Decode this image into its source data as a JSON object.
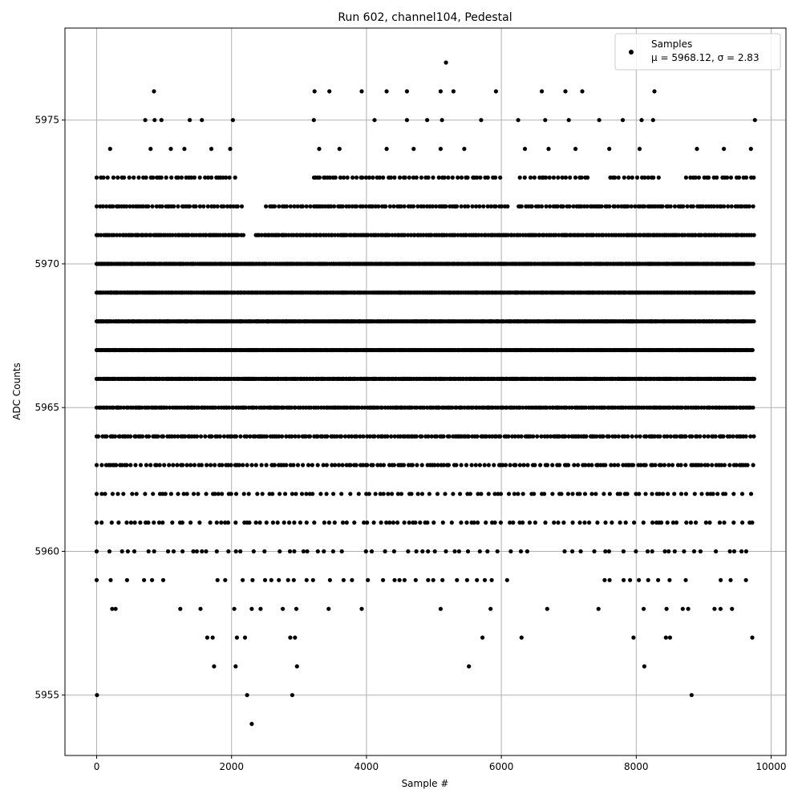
{
  "chart_data": {
    "type": "scatter",
    "title": "Run 602, channel104, Pedestal",
    "xlabel": "Sample #",
    "ylabel": "ADC Counts",
    "xlim": [
      -470,
      10220
    ],
    "ylim": [
      5952.9,
      5978.2
    ],
    "xticks": [
      0,
      2000,
      4000,
      6000,
      8000,
      10000
    ],
    "xtick_labels": [
      "0",
      "2000",
      "4000",
      "6000",
      "8000",
      "10000"
    ],
    "yticks": [
      5955,
      5960,
      5965,
      5970,
      5975
    ],
    "ytick_labels": [
      "5955",
      "5960",
      "5965",
      "5970",
      "5975"
    ],
    "grid": true,
    "legend": {
      "placement": "top-right",
      "entries": [
        {
          "label_line1": "Samples",
          "label_line2": "μ = 5968.12, σ = 2.83",
          "marker": "circle",
          "color": "#000000"
        }
      ]
    },
    "series": [
      {
        "name": "Samples",
        "color": "#000000",
        "marker": "circle",
        "sample_count": 9750,
        "mean": 5968.12,
        "sigma": 2.83,
        "points": [
          [
            850,
            5976
          ],
          [
            3230,
            5976
          ],
          [
            3450,
            5976
          ],
          [
            3930,
            5976
          ],
          [
            4300,
            5976
          ],
          [
            4600,
            5976
          ],
          [
            5100,
            5976
          ],
          [
            5290,
            5976
          ],
          [
            5920,
            5976
          ],
          [
            6600,
            5976
          ],
          [
            6950,
            5976
          ],
          [
            7200,
            5976
          ],
          [
            8270,
            5976
          ],
          [
            5180,
            5977
          ],
          [
            720,
            5975
          ],
          [
            860,
            5975
          ],
          [
            960,
            5975
          ],
          [
            1380,
            5975
          ],
          [
            1560,
            5975
          ],
          [
            2020,
            5975
          ],
          [
            3220,
            5975
          ],
          [
            4120,
            5975
          ],
          [
            4600,
            5975
          ],
          [
            4900,
            5975
          ],
          [
            5120,
            5975
          ],
          [
            5700,
            5975
          ],
          [
            6250,
            5975
          ],
          [
            6650,
            5975
          ],
          [
            7000,
            5975
          ],
          [
            7450,
            5975
          ],
          [
            7800,
            5975
          ],
          [
            8080,
            5975
          ],
          [
            8250,
            5975
          ],
          [
            9760,
            5975
          ],
          [
            200,
            5974
          ],
          [
            800,
            5974
          ],
          [
            1100,
            5974
          ],
          [
            1300,
            5974
          ],
          [
            1700,
            5974
          ],
          [
            1980,
            5974
          ],
          [
            3300,
            5974
          ],
          [
            3600,
            5974
          ],
          [
            4300,
            5974
          ],
          [
            4700,
            5974
          ],
          [
            5100,
            5974
          ],
          [
            5450,
            5974
          ],
          [
            6350,
            5974
          ],
          [
            6700,
            5974
          ],
          [
            7100,
            5974
          ],
          [
            7600,
            5974
          ],
          [
            8050,
            5974
          ],
          [
            8900,
            5974
          ],
          [
            9300,
            5974
          ],
          [
            9700,
            5974
          ],
          [
            4,
            5955
          ],
          [
            2230,
            5955
          ],
          [
            2900,
            5955
          ],
          [
            8820,
            5955
          ],
          [
            2300,
            5954
          ],
          [
            1740,
            5956
          ],
          [
            2060,
            5956
          ],
          [
            2970,
            5956
          ],
          [
            5520,
            5956
          ],
          [
            8120,
            5956
          ],
          [
            1640,
            5957
          ],
          [
            1720,
            5957
          ],
          [
            2080,
            5957
          ],
          [
            2200,
            5957
          ],
          [
            2870,
            5957
          ],
          [
            2940,
            5957
          ],
          [
            5720,
            5957
          ],
          [
            6300,
            5957
          ],
          [
            7960,
            5957
          ],
          [
            8440,
            5957
          ],
          [
            8500,
            5957
          ],
          [
            9720,
            5957
          ],
          [
            230,
            5958
          ],
          [
            280,
            5958
          ],
          [
            1240,
            5958
          ],
          [
            1540,
            5958
          ],
          [
            2040,
            5958
          ],
          [
            2300,
            5958
          ],
          [
            2430,
            5958
          ],
          [
            2760,
            5958
          ],
          [
            2960,
            5958
          ],
          [
            3440,
            5958
          ],
          [
            3930,
            5958
          ],
          [
            5100,
            5958
          ],
          [
            5840,
            5958
          ],
          [
            6680,
            5958
          ],
          [
            7440,
            5958
          ],
          [
            8110,
            5958
          ],
          [
            8450,
            5958
          ],
          [
            8690,
            5958
          ],
          [
            8770,
            5958
          ],
          [
            9160,
            5958
          ],
          [
            9250,
            5958
          ],
          [
            9420,
            5958
          ]
        ],
        "bands": [
          {
            "y": 5973,
            "x_from": 0,
            "x_to": 9750,
            "spacing": 52,
            "gaps": [
              [
                2100,
                3200
              ],
              [
                6000,
                6250
              ],
              [
                7300,
                7600
              ],
              [
                8350,
                8700
              ]
            ]
          },
          {
            "y": 5972,
            "x_from": 0,
            "x_to": 9750,
            "spacing": 40,
            "gaps": [
              [
                2200,
                2500
              ],
              [
                6100,
                6250
              ]
            ]
          },
          {
            "y": 5971,
            "x_from": 0,
            "x_to": 9750,
            "spacing": 28,
            "gaps": [
              [
                2200,
                2350
              ]
            ]
          },
          {
            "y": 5970,
            "x_from": 0,
            "x_to": 9750,
            "spacing": 22,
            "gaps": []
          },
          {
            "y": 5969,
            "x_from": 0,
            "x_to": 9750,
            "spacing": 18,
            "gaps": []
          },
          {
            "y": 5968,
            "x_from": 0,
            "x_to": 9750,
            "spacing": 16,
            "gaps": []
          },
          {
            "y": 5967,
            "x_from": 0,
            "x_to": 9750,
            "spacing": 18,
            "gaps": []
          },
          {
            "y": 5966,
            "x_from": 0,
            "x_to": 9750,
            "spacing": 22,
            "gaps": []
          },
          {
            "y": 5965,
            "x_from": 0,
            "x_to": 9750,
            "spacing": 28,
            "gaps": []
          },
          {
            "y": 5964,
            "x_from": 0,
            "x_to": 9750,
            "spacing": 40,
            "gaps": []
          },
          {
            "y": 5963,
            "x_from": 0,
            "x_to": 9750,
            "spacing": 52,
            "gaps": []
          },
          {
            "y": 5962,
            "x_from": 0,
            "x_to": 9750,
            "spacing": 80,
            "gaps": []
          },
          {
            "y": 5961,
            "x_from": 0,
            "x_to": 9750,
            "spacing": 95,
            "gaps": []
          },
          {
            "y": 5960,
            "x_from": 0,
            "x_to": 9750,
            "spacing": 140,
            "gaps": [
              [
                3700,
                3900
              ],
              [
                6500,
                6900
              ]
            ]
          },
          {
            "y": 5959,
            "x_from": 0,
            "x_to": 9750,
            "spacing": 160,
            "gaps": [
              [
                1000,
                1650
              ],
              [
                6100,
                7400
              ],
              [
                8900,
                9150
              ]
            ]
          }
        ]
      }
    ]
  }
}
